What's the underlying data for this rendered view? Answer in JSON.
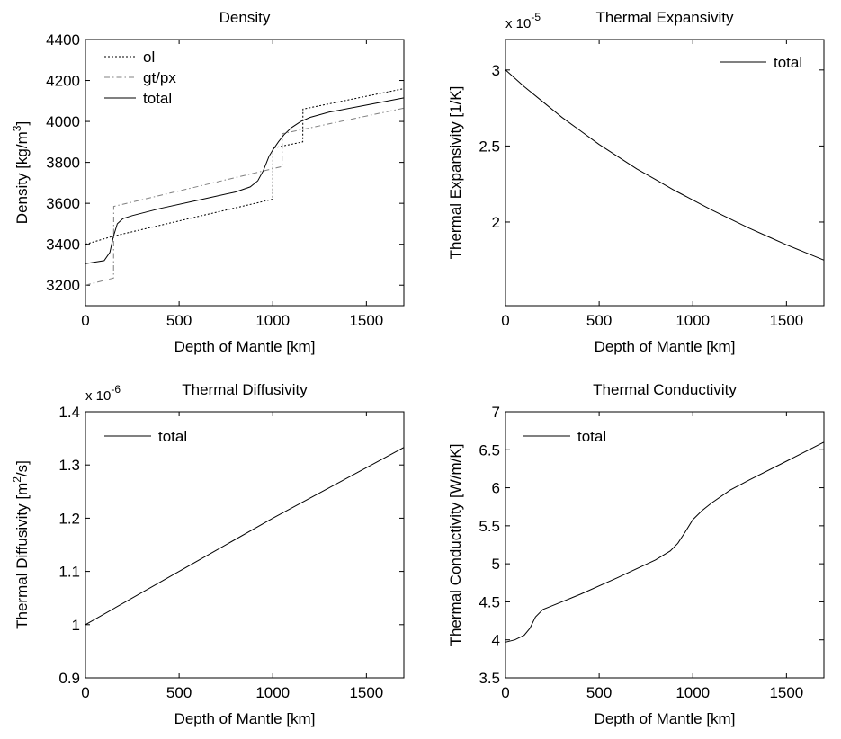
{
  "chart_data": [
    {
      "type": "line",
      "title": "Density",
      "xlabel": "Depth of Mantle [km]",
      "ylabel": "Density [kg/m",
      "ylabel_sup": "3",
      "ylabel_end": "]",
      "xlim": [
        0,
        1700
      ],
      "ylim": [
        3100,
        4400
      ],
      "xticks": [
        0,
        500,
        1000,
        1500
      ],
      "yticks": [
        3200,
        3400,
        3600,
        3800,
        4000,
        4200,
        4400
      ],
      "legend": "top-left",
      "series": [
        {
          "name": "ol",
          "style": "dotted",
          "color": "#000000",
          "x": [
            0,
            150,
            1000,
            1001,
            1160,
            1161,
            1700
          ],
          "y": [
            3400,
            3440,
            3620,
            3870,
            3900,
            4060,
            4160
          ]
        },
        {
          "name": "gt/px",
          "style": "dashdot",
          "color": "#808080",
          "x": [
            0,
            150,
            151,
            1050,
            1051,
            1700
          ],
          "y": [
            3200,
            3235,
            3585,
            3780,
            3940,
            4065
          ]
        },
        {
          "name": "total",
          "style": "solid",
          "color": "#000000",
          "x": [
            0,
            100,
            130,
            150,
            170,
            200,
            250,
            400,
            600,
            800,
            880,
            920,
            950,
            980,
            1000,
            1030,
            1060,
            1100,
            1150,
            1200,
            1300,
            1500,
            1700
          ],
          "y": [
            3305,
            3320,
            3360,
            3440,
            3500,
            3525,
            3540,
            3575,
            3615,
            3655,
            3680,
            3710,
            3760,
            3830,
            3860,
            3900,
            3935,
            3970,
            4000,
            4020,
            4045,
            4080,
            4115
          ]
        }
      ]
    },
    {
      "type": "line",
      "title": "Thermal Expansivity",
      "xlabel": "Depth of Mantle [km]",
      "ylabel": "Thermal Expansivity [1/K]",
      "multiplier_base": "x 10",
      "multiplier_exp": "-5",
      "xlim": [
        0,
        1700
      ],
      "ylim": [
        1.45,
        3.2
      ],
      "xticks": [
        0,
        500,
        1000,
        1500
      ],
      "yticks": [
        2,
        2.5,
        3
      ],
      "legend": "top-right",
      "series": [
        {
          "name": "total",
          "style": "solid",
          "color": "#000000",
          "x": [
            0,
            100,
            200,
            300,
            400,
            500,
            600,
            700,
            800,
            900,
            1000,
            1100,
            1200,
            1300,
            1400,
            1500,
            1600,
            1700
          ],
          "y": [
            3.0,
            2.89,
            2.79,
            2.69,
            2.6,
            2.51,
            2.43,
            2.35,
            2.28,
            2.21,
            2.145,
            2.08,
            2.02,
            1.96,
            1.905,
            1.85,
            1.8,
            1.75
          ]
        }
      ]
    },
    {
      "type": "line",
      "title": "Thermal Diffusivity",
      "xlabel": "Depth of Mantle [km]",
      "ylabel": "Thermal Diffusivity [m",
      "ylabel_sup": "2",
      "ylabel_end": "/s]",
      "multiplier_base": "x 10",
      "multiplier_exp": "-6",
      "xlim": [
        0,
        1700
      ],
      "ylim": [
        0.9,
        1.4
      ],
      "xticks": [
        0,
        500,
        1000,
        1500
      ],
      "yticks": [
        0.9,
        1,
        1.1,
        1.2,
        1.3,
        1.4
      ],
      "legend": "top-left",
      "series": [
        {
          "name": "total",
          "style": "solid",
          "color": "#000000",
          "x": [
            0,
            500,
            1000,
            1500,
            1700
          ],
          "y": [
            1.0,
            1.1,
            1.2,
            1.295,
            1.333
          ]
        }
      ]
    },
    {
      "type": "line",
      "title": "Thermal Conductivity",
      "xlabel": "Depth of Mantle [km]",
      "ylabel": "Thermal Conductivity [W/m/K]",
      "xlim": [
        0,
        1700
      ],
      "ylim": [
        3.5,
        7
      ],
      "xticks": [
        0,
        500,
        1000,
        1500
      ],
      "yticks": [
        3.5,
        4,
        4.5,
        5,
        5.5,
        6,
        6.5,
        7
      ],
      "legend": "top-left",
      "series": [
        {
          "name": "total",
          "style": "solid",
          "color": "#000000",
          "x": [
            0,
            50,
            100,
            130,
            160,
            200,
            250,
            400,
            600,
            800,
            880,
            920,
            960,
            1000,
            1050,
            1100,
            1200,
            1300,
            1500,
            1700
          ],
          "y": [
            3.97,
            4.0,
            4.06,
            4.15,
            4.3,
            4.4,
            4.45,
            4.6,
            4.82,
            5.05,
            5.17,
            5.27,
            5.42,
            5.58,
            5.7,
            5.8,
            5.97,
            6.1,
            6.35,
            6.6
          ]
        }
      ]
    }
  ]
}
